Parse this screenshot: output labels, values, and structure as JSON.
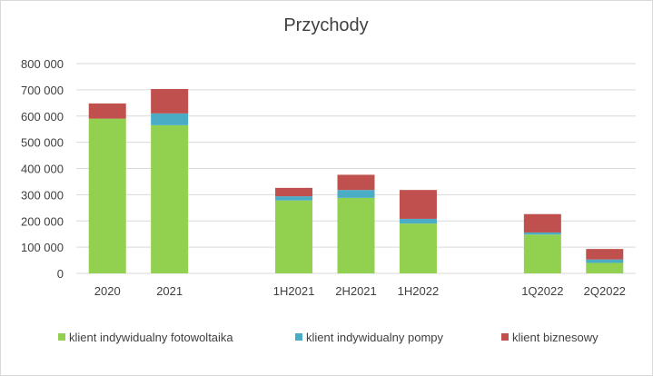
{
  "chart_data": {
    "type": "bar",
    "stacked": true,
    "title": "Przychody",
    "categories": [
      "2020",
      "2021",
      "",
      "1H2021",
      "2H2021",
      "1H2022",
      "",
      "1Q2022",
      "2Q2022"
    ],
    "series": [
      {
        "name": "klient indywidualny fotowoltaika",
        "color": "#92d050",
        "values": [
          590000,
          565000,
          null,
          278000,
          288000,
          190000,
          null,
          148000,
          40000
        ]
      },
      {
        "name": "klient indywidualny pompy",
        "color": "#4bacc6",
        "values": [
          0,
          45000,
          null,
          16000,
          30000,
          18000,
          null,
          8000,
          13000
        ]
      },
      {
        "name": "klient biznesowy",
        "color": "#c0504d",
        "values": [
          58000,
          93000,
          null,
          32000,
          58000,
          110000,
          null,
          70000,
          40000
        ]
      }
    ],
    "ylim": [
      0,
      800000
    ],
    "yticks": [
      "0",
      "100 000",
      "200 000",
      "300 000",
      "400 000",
      "500 000",
      "600 000",
      "700 000",
      "800 000"
    ],
    "ytick_values": [
      0,
      100000,
      200000,
      300000,
      400000,
      500000,
      600000,
      700000,
      800000
    ],
    "grid": true,
    "legend_position": "bottom"
  }
}
